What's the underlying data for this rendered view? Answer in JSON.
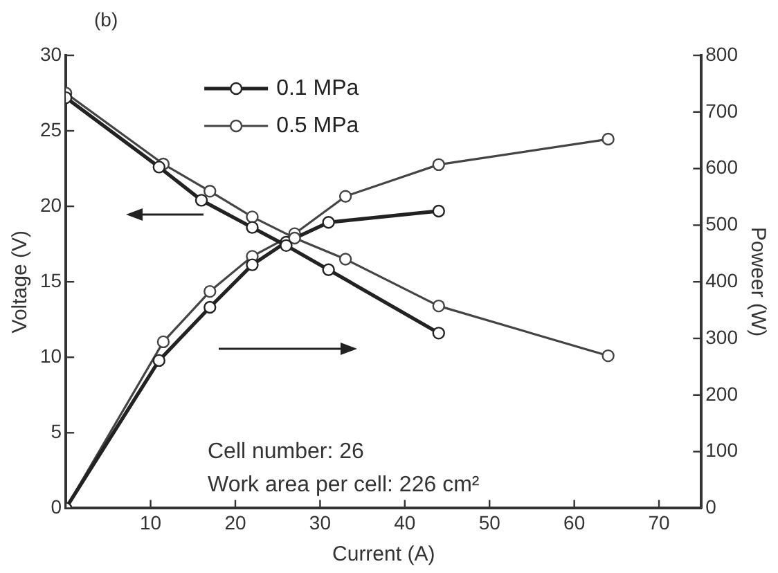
{
  "chart_data": {
    "type": "line",
    "xlabel": "Current (A)",
    "ylabel": "Voltage (V)",
    "y2label": "Poweer (W)",
    "annotations": [
      "(b)",
      "Cell number: 26",
      "Work area per cell: 226 cm²"
    ],
    "xlim": [
      0,
      75
    ],
    "xticks": [
      {
        "value": 0,
        "label": null
      },
      10,
      20,
      30,
      40,
      50,
      60,
      70
    ],
    "ylim": [
      0,
      30
    ],
    "yticks": [
      0,
      5,
      10,
      15,
      20,
      25,
      30
    ],
    "y2lim": [
      0,
      800
    ],
    "y2ticks": [
      0,
      100,
      200,
      300,
      400,
      500,
      600,
      700,
      800
    ],
    "grid": false,
    "legend": "top left",
    "marker": "circle",
    "line_style": "solid",
    "series": [
      {
        "name": "0.1 MPa",
        "color": "#222222",
        "axis": "y",
        "x": [
          0,
          11,
          16,
          22,
          26,
          31,
          44
        ],
        "values": [
          27.2,
          22.6,
          20.4,
          18.6,
          17.4,
          15.8,
          11.6
        ]
      },
      {
        "name": "0.5 MPa",
        "color": "#444444",
        "axis": "y",
        "x": [
          0,
          11.5,
          17,
          22,
          27,
          33,
          44,
          64
        ],
        "values": [
          27.5,
          22.8,
          21.0,
          19.3,
          17.9,
          16.5,
          13.4,
          10.1
        ]
      },
      {
        "color": "#222222",
        "axis": "y2",
        "x": [
          0,
          11,
          17,
          22,
          26,
          31,
          44
        ],
        "values": [
          0,
          261,
          355,
          430,
          470,
          505,
          525
        ]
      },
      {
        "color": "#444444",
        "axis": "y2",
        "x": [
          0,
          11.5,
          17,
          22,
          27,
          33,
          44,
          64
        ],
        "values": [
          0,
          294,
          383,
          445,
          485,
          551,
          607,
          652
        ]
      }
    ]
  }
}
